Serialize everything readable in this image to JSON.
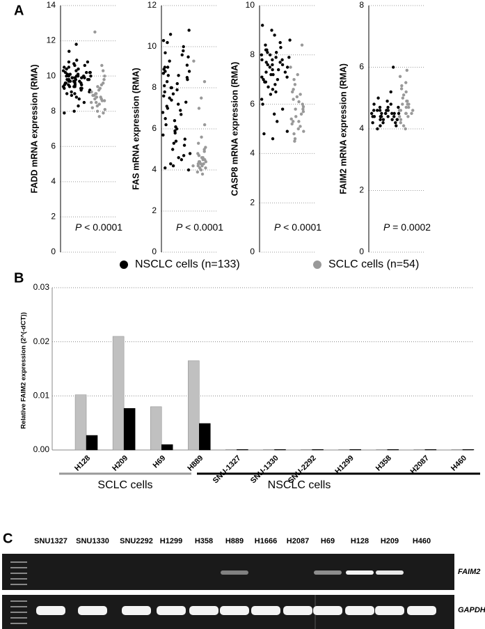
{
  "panel_labels": [
    "A",
    "B",
    "C"
  ],
  "panel_a_legend": [
    {
      "name": "NSCLC cells (n=133)",
      "color": "#000000"
    },
    {
      "name": "SCLC cells (n=54)",
      "color": "#999999"
    }
  ],
  "chart_data": [
    {
      "type": "strip",
      "ylabel": "FADD mRNA expression (RMA)",
      "annotation_p": "P",
      "annotation": "< 0.0001",
      "ylim": [
        0,
        14
      ],
      "yticks": [
        0,
        2,
        4,
        6,
        8,
        10,
        12,
        14
      ],
      "grid": true,
      "series": [
        {
          "color": "#000000",
          "values": [
            11.8,
            10.4,
            9.6,
            11.4,
            9.9,
            10.9,
            9.3,
            10.8,
            8.7,
            10.7,
            9.7,
            10.6,
            9.2,
            10.5,
            10.0,
            10.5,
            9.5,
            10.4,
            8.3,
            10.3,
            9.8,
            10.3,
            9.1,
            10.2,
            10.2,
            9.4,
            10.2,
            10.1,
            8.0,
            10.1,
            9.9,
            10.1,
            9.0,
            10.0,
            9.6,
            10.0,
            10.0,
            8.9,
            10.0,
            9.9,
            9.9,
            9.9,
            7.9,
            9.8,
            9.8,
            9.8,
            9.8,
            9.7,
            9.7,
            9.7,
            8.5,
            9.6,
            9.6,
            9.5,
            9.5,
            9.5,
            9.4,
            9.4,
            9.3,
            9.3,
            9.2,
            9.1,
            9.0,
            8.8,
            10.6,
            10.2,
            9.9,
            9.7,
            9.4,
            10.8,
            10.0,
            9.6
          ]
        },
        {
          "color": "#999999",
          "values": [
            12.5,
            10.6,
            10.3,
            10.0,
            9.8,
            9.6,
            9.5,
            9.3,
            9.2,
            9.1,
            9.0,
            9.0,
            8.9,
            8.8,
            8.8,
            8.7,
            8.7,
            8.6,
            8.5,
            8.5,
            8.4,
            8.3,
            8.2,
            8.1,
            8.0,
            7.9,
            7.7,
            9.4,
            8.9,
            8.6
          ]
        }
      ]
    },
    {
      "type": "strip",
      "ylabel": "FAS mRNA expression (RMA)",
      "annotation_p": "P",
      "annotation": "< 0.0001",
      "ylim": [
        0,
        12
      ],
      "yticks": [
        0,
        2,
        4,
        6,
        8,
        10,
        12
      ],
      "grid": true,
      "series": [
        {
          "color": "#000000",
          "values": [
            10.8,
            10.6,
            10.3,
            10.2,
            10.0,
            9.8,
            9.6,
            9.5,
            9.3,
            9.1,
            9.0,
            8.9,
            8.8,
            8.7,
            8.6,
            8.5,
            8.4,
            8.3,
            8.2,
            8.1,
            8.0,
            7.9,
            7.8,
            7.7,
            7.5,
            7.4,
            7.3,
            7.1,
            7.0,
            6.8,
            6.7,
            6.5,
            6.4,
            6.2,
            6.0,
            5.9,
            5.7,
            5.5,
            5.4,
            5.2,
            5.0,
            4.8,
            4.7,
            4.5,
            4.3,
            4.2,
            4.1,
            4.0,
            9.7,
            9.0,
            8.6,
            8.0,
            7.6,
            6.9,
            6.1,
            5.3,
            4.6,
            8.8,
            7.2,
            5.8
          ]
        },
        {
          "color": "#999999",
          "values": [
            9.3,
            8.3,
            7.5,
            7.0,
            6.2,
            5.6,
            5.3,
            5.1,
            4.9,
            4.8,
            4.7,
            4.6,
            4.5,
            4.5,
            4.4,
            4.4,
            4.3,
            4.3,
            4.2,
            4.2,
            4.1,
            4.1,
            4.0,
            3.9,
            3.8,
            4.6,
            4.4,
            4.3,
            5.0,
            4.2
          ]
        }
      ]
    },
    {
      "type": "strip",
      "ylabel": "CASP8 mRNA expression (RMA)",
      "annotation_p": "P",
      "annotation": "< 0.0001",
      "ylim": [
        0,
        10
      ],
      "yticks": [
        0,
        2,
        4,
        6,
        8,
        10
      ],
      "grid": true,
      "series": [
        {
          "color": "#000000",
          "values": [
            9.2,
            9.0,
            8.8,
            8.6,
            8.5,
            8.4,
            8.3,
            8.2,
            8.2,
            8.1,
            8.0,
            8.0,
            7.9,
            7.9,
            7.8,
            7.8,
            7.7,
            7.7,
            7.6,
            7.6,
            7.5,
            7.5,
            7.4,
            7.4,
            7.3,
            7.3,
            7.2,
            7.2,
            7.1,
            7.0,
            7.0,
            6.9,
            6.8,
            6.7,
            6.6,
            6.5,
            6.4,
            6.2,
            6.0,
            5.8,
            5.6,
            5.3,
            4.9,
            4.8,
            4.6,
            8.1,
            7.6,
            7.1,
            6.9,
            7.8
          ]
        },
        {
          "color": "#999999",
          "values": [
            8.4,
            7.5,
            7.2,
            7.0,
            6.8,
            6.6,
            6.4,
            6.3,
            6.2,
            6.1,
            6.0,
            5.9,
            5.8,
            5.7,
            5.6,
            5.5,
            5.4,
            5.3,
            5.2,
            5.1,
            5.0,
            4.9,
            4.8,
            4.6,
            4.5,
            6.5,
            5.8,
            5.3
          ]
        }
      ]
    },
    {
      "type": "strip",
      "ylabel": "FAIM2 mRNA expression (RMA)",
      "annotation_p": "P",
      "annotation": "= 0.0002",
      "ylim": [
        0,
        8
      ],
      "yticks": [
        0,
        2,
        4,
        6,
        8
      ],
      "grid": true,
      "series": [
        {
          "color": "#000000",
          "values": [
            6.0,
            5.2,
            5.0,
            4.9,
            4.8,
            4.8,
            4.7,
            4.7,
            4.7,
            4.6,
            4.6,
            4.6,
            4.6,
            4.5,
            4.5,
            4.5,
            4.5,
            4.5,
            4.4,
            4.4,
            4.4,
            4.4,
            4.4,
            4.3,
            4.3,
            4.3,
            4.3,
            4.2,
            4.2,
            4.2,
            4.1,
            4.1,
            4.0,
            4.6,
            4.5,
            4.4,
            4.3,
            4.5,
            4.4,
            4.6
          ]
        },
        {
          "color": "#999999",
          "values": [
            5.9,
            5.7,
            5.5,
            5.3,
            5.2,
            5.1,
            5.0,
            4.9,
            4.9,
            4.8,
            4.8,
            4.7,
            4.7,
            4.6,
            4.6,
            4.5,
            4.5,
            4.4,
            4.4,
            4.3,
            4.2,
            4.1,
            4.0,
            4.8,
            4.6,
            4.5,
            5.4
          ]
        }
      ]
    },
    {
      "type": "bar",
      "ylabel": "Relative FAIM2 expression (2^(-dCT))",
      "categories": [
        "H128",
        "H209",
        "H69",
        "H889",
        "SNU-1327",
        "SNU-1330",
        "SNU-2292",
        "H1299",
        "H358",
        "H2087",
        "H460"
      ],
      "ylim": [
        0,
        0.03
      ],
      "yticks": [
        {
          "value": 0,
          "label": "0.00"
        },
        {
          "value": 0.01,
          "label": "0.01"
        },
        {
          "value": 0.02,
          "label": "0.02"
        },
        {
          "value": 0.03,
          "label": "0.03"
        }
      ],
      "grid": true,
      "series": [
        {
          "color": "#c0c0c0",
          "values": [
            0.0102,
            0.021,
            0.008,
            0.0165,
            0.0001,
            0.0001,
            0.0001,
            0.0001,
            0.0001,
            0.0001,
            0.0001
          ]
        },
        {
          "color": "#000000",
          "values": [
            0.0027,
            0.0077,
            0.001,
            0.0049,
            0.0001,
            0.0001,
            0.0001,
            0.0001,
            0.0001,
            0.0001,
            0.0001
          ]
        }
      ],
      "group_labels": [
        {
          "label": "SCLC cells",
          "color": "#999999"
        },
        {
          "label": "NSCLC cells",
          "color": "#000000"
        }
      ]
    }
  ],
  "gel": {
    "lanes": [
      "SNU1327",
      "SNU1330",
      "SNU2292",
      "H1299",
      "H358",
      "H889",
      "H1666",
      "H2087",
      "H69",
      "H128",
      "H209",
      "H460"
    ],
    "genes": [
      "FAIM2",
      "GAPDH"
    ]
  }
}
